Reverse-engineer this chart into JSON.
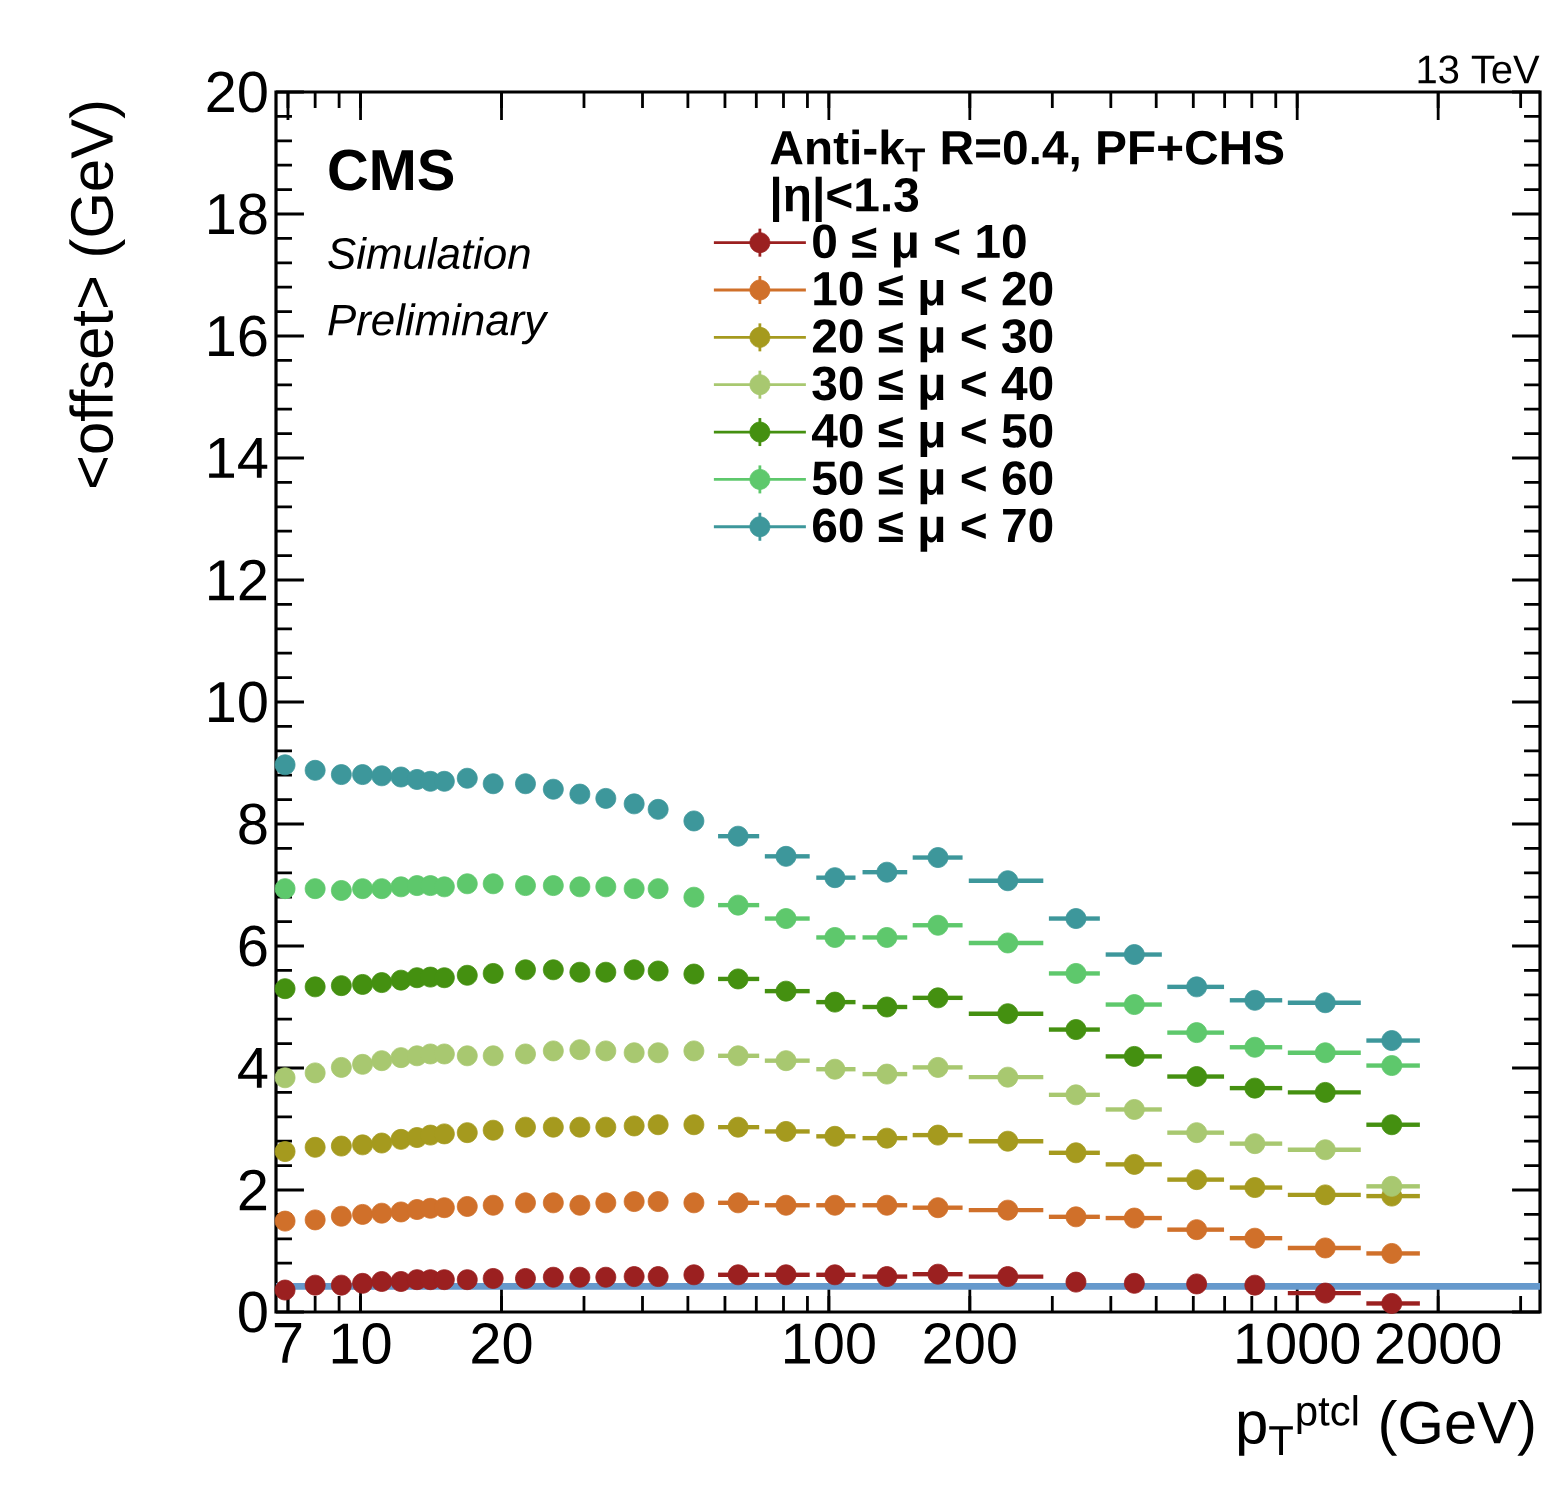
{
  "chart_data": {
    "type": "scatter",
    "xlabel": "p$_{T}$$^{ptcl}$ (GeV)",
    "ylabel": "<offset> (GeV)",
    "legend_title": "Anti-k$_{T}$ R=0.4, PF+CHS",
    "annotations": [
      "13 TeV",
      "CMS",
      "Simulation",
      "Preliminary",
      "|η|<1.3"
    ],
    "log": "x",
    "xlim": [
      6.6,
      3300
    ],
    "xticks": [
      7,
      10,
      20,
      100,
      200,
      1000,
      2000
    ],
    "ylim": [
      0,
      20
    ],
    "yticks": [
      0,
      2,
      4,
      6,
      8,
      10,
      12,
      14,
      16,
      18,
      20
    ],
    "legend": "top",
    "marker": "circle",
    "x": [
      6.9,
      8,
      9.1,
      10.1,
      11.1,
      12.2,
      13.2,
      14.1,
      15.1,
      16.9,
      19.2,
      22.5,
      25.8,
      29.4,
      33.4,
      38.4,
      43.2,
      51.5,
      64,
      81,
      103,
      133,
      171,
      241,
      337,
      449,
      610,
      812,
      1148,
      1592
    ],
    "ref_lines": [
      {
        "axis": "y",
        "value": 0.42,
        "color": "#6699cc"
      }
    ],
    "series": [
      {
        "name": "0 ≤ μ < 10",
        "color": "#9b2020",
        "values": [
          0.36,
          0.44,
          0.44,
          0.47,
          0.5,
          0.5,
          0.53,
          0.53,
          0.53,
          0.53,
          0.55,
          0.55,
          0.57,
          0.57,
          0.57,
          0.58,
          0.58,
          0.61,
          0.61,
          0.61,
          0.61,
          0.58,
          0.62,
          0.58,
          0.49,
          0.47,
          0.46,
          0.44,
          0.31,
          0.14
        ],
        "xerrors": [
          null,
          null,
          null,
          null,
          null,
          null,
          null,
          null,
          null,
          null,
          null,
          null,
          null,
          null,
          null,
          null,
          null,
          null,
          [
            58,
            71
          ],
          [
            73,
            91
          ],
          [
            94,
            114
          ],
          [
            118,
            147
          ],
          [
            151,
            193
          ],
          [
            199,
            287
          ],
          null,
          null,
          null,
          null,
          [
            955,
            1367
          ],
          [
            1405,
            1828
          ]
        ]
      },
      {
        "name": "10 ≤ μ < 20",
        "color": "#d0702a",
        "values": [
          1.49,
          1.51,
          1.57,
          1.6,
          1.62,
          1.64,
          1.68,
          1.7,
          1.71,
          1.73,
          1.75,
          1.79,
          1.79,
          1.75,
          1.79,
          1.81,
          1.81,
          1.79,
          1.79,
          1.75,
          1.75,
          1.75,
          1.71,
          1.67,
          1.56,
          1.54,
          1.35,
          1.21,
          1.05,
          0.96
        ],
        "xerrors": [
          null,
          null,
          null,
          null,
          null,
          null,
          null,
          null,
          null,
          null,
          null,
          null,
          null,
          null,
          null,
          null,
          null,
          null,
          [
            58,
            71
          ],
          [
            73,
            91
          ],
          [
            94,
            114
          ],
          [
            118,
            147
          ],
          [
            151,
            193
          ],
          [
            199,
            287
          ],
          [
            295,
            379
          ],
          [
            390,
            514
          ],
          [
            528,
            698
          ],
          [
            718,
            929
          ],
          [
            955,
            1367
          ],
          [
            1405,
            1828
          ]
        ]
      },
      {
        "name": "20 ≤ μ < 30",
        "color": "#a59a1e",
        "values": [
          2.63,
          2.7,
          2.72,
          2.74,
          2.77,
          2.83,
          2.86,
          2.9,
          2.92,
          2.94,
          2.98,
          3.03,
          3.03,
          3.03,
          3.03,
          3.05,
          3.07,
          3.07,
          3.03,
          2.96,
          2.88,
          2.85,
          2.9,
          2.8,
          2.61,
          2.42,
          2.17,
          2.04,
          1.92,
          1.9
        ],
        "xerrors": [
          null,
          null,
          null,
          null,
          null,
          null,
          null,
          null,
          null,
          null,
          null,
          null,
          null,
          null,
          null,
          null,
          null,
          null,
          [
            58,
            71
          ],
          [
            73,
            91
          ],
          [
            94,
            114
          ],
          [
            118,
            147
          ],
          [
            151,
            193
          ],
          [
            199,
            287
          ],
          [
            295,
            379
          ],
          [
            390,
            514
          ],
          [
            528,
            698
          ],
          [
            718,
            929
          ],
          [
            955,
            1367
          ],
          [
            1405,
            1828
          ]
        ]
      },
      {
        "name": "30 ≤ μ < 40",
        "color": "#a8c870",
        "values": [
          3.84,
          3.92,
          4.01,
          4.06,
          4.12,
          4.17,
          4.2,
          4.23,
          4.23,
          4.2,
          4.2,
          4.23,
          4.28,
          4.3,
          4.28,
          4.25,
          4.25,
          4.28,
          4.2,
          4.12,
          3.98,
          3.9,
          4.01,
          3.85,
          3.56,
          3.32,
          2.94,
          2.76,
          2.66,
          2.06
        ],
        "xerrors": [
          null,
          null,
          null,
          null,
          null,
          null,
          null,
          null,
          null,
          null,
          null,
          null,
          null,
          null,
          null,
          null,
          null,
          null,
          [
            58,
            71
          ],
          [
            73,
            91
          ],
          [
            94,
            114
          ],
          [
            118,
            147
          ],
          [
            151,
            193
          ],
          [
            199,
            287
          ],
          [
            295,
            379
          ],
          [
            390,
            514
          ],
          [
            528,
            698
          ],
          [
            718,
            929
          ],
          [
            955,
            1367
          ],
          [
            1405,
            1828
          ]
        ]
      },
      {
        "name": "40 ≤ μ < 50",
        "color": "#449010",
        "values": [
          5.3,
          5.33,
          5.35,
          5.37,
          5.4,
          5.44,
          5.48,
          5.49,
          5.48,
          5.52,
          5.55,
          5.61,
          5.61,
          5.57,
          5.57,
          5.61,
          5.59,
          5.54,
          5.46,
          5.26,
          5.08,
          5.0,
          5.15,
          4.89,
          4.63,
          4.19,
          3.86,
          3.67,
          3.6,
          3.07
        ],
        "xerrors": [
          null,
          null,
          null,
          null,
          null,
          null,
          null,
          null,
          null,
          null,
          null,
          null,
          null,
          null,
          null,
          null,
          null,
          null,
          [
            58,
            71
          ],
          [
            73,
            91
          ],
          [
            94,
            114
          ],
          [
            118,
            147
          ],
          [
            151,
            193
          ],
          [
            199,
            287
          ],
          [
            295,
            379
          ],
          [
            390,
            514
          ],
          [
            528,
            698
          ],
          [
            718,
            929
          ],
          [
            955,
            1367
          ],
          [
            1405,
            1828
          ]
        ]
      },
      {
        "name": "50 ≤ μ < 60",
        "color": "#5ec86c",
        "values": [
          6.94,
          6.94,
          6.91,
          6.94,
          6.94,
          6.97,
          6.99,
          6.99,
          6.97,
          7.02,
          7.02,
          6.99,
          6.99,
          6.97,
          6.97,
          6.94,
          6.94,
          6.8,
          6.67,
          6.45,
          6.14,
          6.14,
          6.34,
          6.05,
          5.55,
          5.04,
          4.58,
          4.34,
          4.25,
          4.04
        ],
        "xerrors": [
          null,
          null,
          null,
          null,
          null,
          null,
          null,
          null,
          null,
          null,
          null,
          null,
          null,
          null,
          null,
          null,
          null,
          null,
          [
            58,
            71
          ],
          [
            73,
            91
          ],
          [
            94,
            114
          ],
          [
            118,
            147
          ],
          [
            151,
            193
          ],
          [
            199,
            287
          ],
          [
            295,
            379
          ],
          [
            390,
            514
          ],
          [
            528,
            698
          ],
          [
            718,
            929
          ],
          [
            955,
            1367
          ],
          [
            1405,
            1828
          ]
        ]
      },
      {
        "name": "60 ≤ μ < 70",
        "color": "#3d979b",
        "values": [
          8.97,
          8.88,
          8.81,
          8.81,
          8.79,
          8.77,
          8.73,
          8.7,
          8.7,
          8.75,
          8.66,
          8.66,
          8.57,
          8.49,
          8.42,
          8.33,
          8.24,
          8.05,
          7.8,
          7.47,
          7.12,
          7.21,
          7.45,
          7.07,
          6.45,
          5.86,
          5.33,
          5.11,
          5.07,
          4.45
        ],
        "xerrors": [
          null,
          null,
          null,
          null,
          null,
          null,
          null,
          null,
          null,
          null,
          null,
          null,
          null,
          null,
          null,
          null,
          null,
          null,
          [
            58,
            71
          ],
          [
            73,
            91
          ],
          [
            94,
            114
          ],
          [
            118,
            147
          ],
          [
            151,
            193
          ],
          [
            199,
            287
          ],
          [
            295,
            379
          ],
          [
            390,
            514
          ],
          [
            528,
            698
          ],
          [
            718,
            929
          ],
          [
            955,
            1367
          ],
          [
            1405,
            1828
          ]
        ]
      }
    ]
  }
}
